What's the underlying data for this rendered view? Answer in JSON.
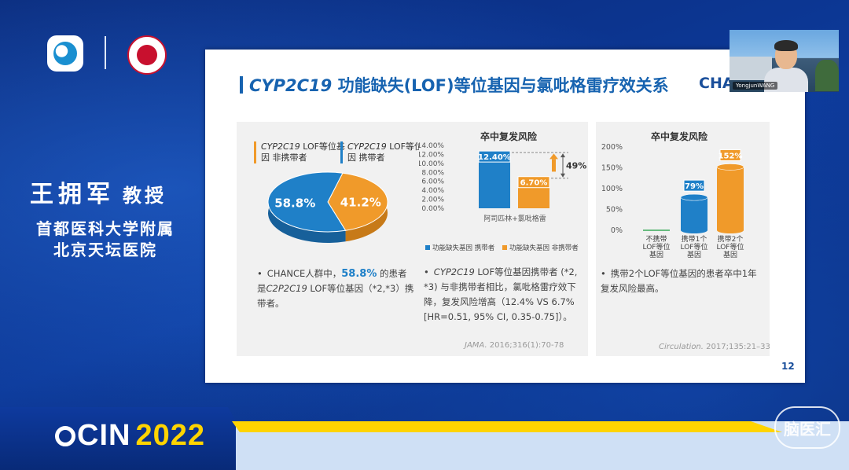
{
  "speaker": {
    "name": "王拥军",
    "title": "教授",
    "affiliation_1": "首都医科大学附属",
    "affiliation_2": "北京天坛医院"
  },
  "slide": {
    "title_prefix": "CYP2C19",
    "title_rest": " 功能缺失(LOF)等位基因与氯吡格雷疗效关系",
    "brand": "CHANCE",
    "page_number": "12",
    "panel1": {
      "legend_noncarrier_a": "CYP2C19",
      "legend_noncarrier_b": " LOF等位基因 非携带者",
      "legend_carrier_a": "CYP2C19",
      "legend_carrier_b": " LOF等位基因 携带者",
      "pie": {
        "slices": [
          {
            "label": "41.2%",
            "value": 41.2,
            "color": "#f09a2a"
          },
          {
            "label": "58.8%",
            "value": 58.8,
            "color": "#1f80c8"
          }
        ]
      },
      "bullet": {
        "dot": "•",
        "t1": "CHANCE人群中，",
        "hl": "58.8%",
        "t2": " 的患者是",
        "it": "C2P2C19",
        "t3": " LOF等位基因（*2,*3）携带者。"
      }
    },
    "panel2": {
      "chart_title": "卒中复发风险",
      "bullet": {
        "dot": "•",
        "it": "CYP2C19",
        "t1": " LOF等位基因携带者 (*2, *3) 与非携带者相比，氯吡格雷疗效下降，复发风险增高（12.4% VS 6.7% [HR=0.51, 95% CI, 0.35-0.75]）。"
      },
      "citation_journal": "JAMA.",
      "citation_rest": " 2016;316(1):70-78"
    },
    "panel3": {
      "chart_title": "卒中复发风险",
      "bullet": {
        "dot": "•",
        "t1": "携带2个LOF等位基因的患者卒中1年复发风险最高。"
      },
      "citation_journal": "Circulation.",
      "citation_rest": " 2017;135:21–33"
    }
  },
  "chart_data": [
    {
      "type": "bar",
      "title": "卒中复发风险",
      "categories": [
        "阿司匹林+氯吡格雷"
      ],
      "series": [
        {
          "name": "功能缺失基因 携带者",
          "values": [
            12.4
          ],
          "label": "12.40%",
          "color": "#1f80c8"
        },
        {
          "name": "功能缺失基因 非携带者",
          "values": [
            6.7
          ],
          "label": "6.70%",
          "color": "#f09a2a"
        }
      ],
      "yticks": [
        "14.00%",
        "12.00%",
        "10.00%",
        "8.00%",
        "6.00%",
        "4.00%",
        "2.00%",
        "0.00%"
      ],
      "ylim": [
        0,
        14
      ],
      "annotation": "49%",
      "legend_position": "bottom"
    },
    {
      "type": "bar",
      "title": "卒中复发风险",
      "categories": [
        "不携带LOF等位基因",
        "携带1个LOF等位基因",
        "携带2个LOF等位基因"
      ],
      "category_lines": [
        [
          "不携带",
          "LOF等位",
          "基因"
        ],
        [
          "携带1个",
          "LOF等位",
          "基因"
        ],
        [
          "携带2个",
          "LOF等位",
          "基因"
        ]
      ],
      "values": [
        0,
        79,
        152
      ],
      "labels": [
        "",
        "79%",
        "152%"
      ],
      "colors": [
        "#3aaa5a",
        "#1f80c8",
        "#f09a2a"
      ],
      "yticks": [
        "200%",
        "150%",
        "100%",
        "50%",
        "0%"
      ],
      "ylim": [
        0,
        200
      ]
    }
  ],
  "webcam": {
    "label": "YongjunWANG"
  },
  "banner": {
    "ocin": "CIN",
    "year": "2022",
    "watermark": "脑医汇"
  }
}
